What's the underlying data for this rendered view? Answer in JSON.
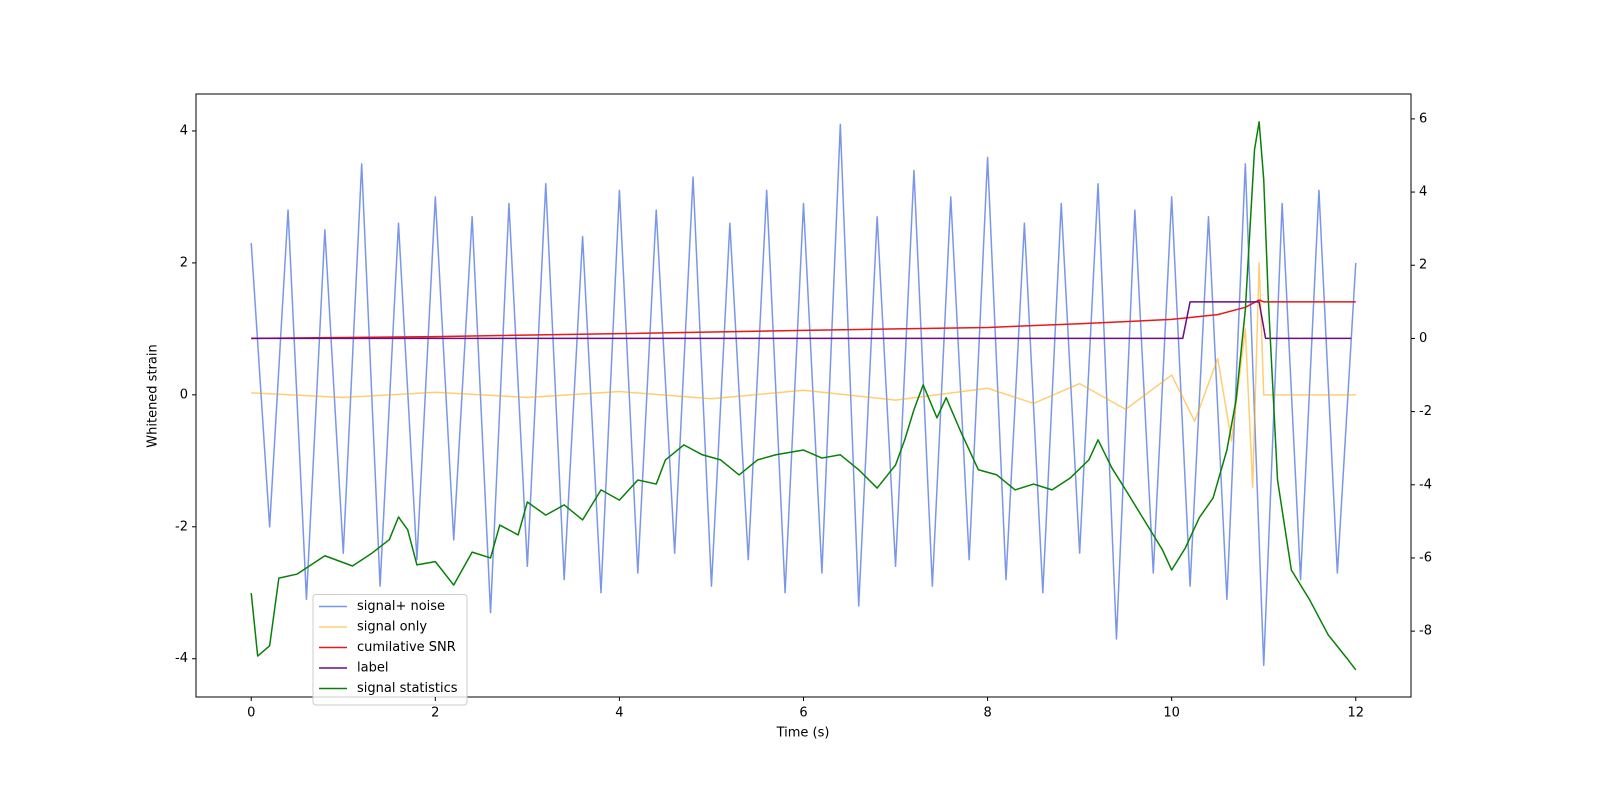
{
  "chart_data": {
    "type": "line",
    "xlabel": "Time (s)",
    "ylabel": "Whitened strain",
    "xlim": [
      -0.6,
      12.6
    ],
    "xticks": [
      0,
      2,
      4,
      6,
      8,
      10,
      12
    ],
    "ylim": [
      -4.58,
      4.56
    ],
    "yticks": [
      -4,
      -2,
      0,
      2,
      4
    ],
    "y2lim": [
      -9.8,
      6.68
    ],
    "y2ticks": [
      -8,
      -6,
      -4,
      -2,
      0,
      2,
      4,
      6
    ],
    "grid": false,
    "legend": "lower left",
    "series": [
      {
        "name": "signal+ noise",
        "color": "#4169e1",
        "opacity": 0.7,
        "axis": "y",
        "x": [
          0,
          0.2,
          0.4,
          0.6,
          0.8,
          1,
          1.2,
          1.4,
          1.6,
          1.8,
          2,
          2.2,
          2.4,
          2.6,
          2.8,
          3,
          3.2,
          3.4,
          3.6,
          3.8,
          4,
          4.2,
          4.4,
          4.6,
          4.8,
          5,
          5.2,
          5.4,
          5.6,
          5.8,
          6,
          6.2,
          6.4,
          6.6,
          6.8,
          7,
          7.2,
          7.4,
          7.6,
          7.8,
          8,
          8.2,
          8.4,
          8.6,
          8.8,
          9,
          9.2,
          9.4,
          9.6,
          9.8,
          10,
          10.2,
          10.4,
          10.6,
          10.8,
          11,
          11.2,
          11.4,
          11.6,
          11.8,
          12
        ],
        "values": [
          2.3,
          -2.0,
          2.8,
          -3.1,
          2.5,
          -2.4,
          3.5,
          -2.9,
          2.6,
          -2.5,
          3.0,
          -2.2,
          2.7,
          -3.3,
          2.9,
          -2.6,
          3.2,
          -2.8,
          2.4,
          -3.0,
          3.1,
          -2.7,
          2.8,
          -2.4,
          3.3,
          -2.9,
          2.6,
          -2.5,
          3.1,
          -3.0,
          2.9,
          -2.7,
          4.1,
          -3.2,
          2.7,
          -2.6,
          3.4,
          -2.9,
          3.0,
          -2.5,
          3.6,
          -2.8,
          2.6,
          -3.0,
          2.9,
          -2.4,
          3.2,
          -3.7,
          2.8,
          -2.7,
          3.0,
          -2.9,
          2.7,
          -3.1,
          3.5,
          -4.1,
          2.9,
          -2.8,
          3.1,
          -2.7,
          2.0
        ]
      },
      {
        "name": "signal only",
        "color": "#ffa500",
        "opacity": 0.55,
        "axis": "y",
        "x": [
          0,
          1,
          2,
          3,
          4,
          5,
          6,
          7,
          8,
          8.5,
          9,
          9.5,
          10,
          10.25,
          10.5,
          10.65,
          10.8,
          10.88,
          10.95,
          11,
          12
        ],
        "values": [
          0.03,
          -0.04,
          0.04,
          -0.04,
          0.05,
          -0.06,
          0.07,
          -0.08,
          0.1,
          -0.13,
          0.17,
          -0.22,
          0.3,
          -0.4,
          0.55,
          -0.7,
          1.0,
          -1.4,
          2.0,
          0,
          0
        ]
      },
      {
        "name": "cumilative SNR",
        "color": "#e8191b",
        "opacity": 1,
        "axis": "y2",
        "x": [
          0,
          2,
          4,
          6,
          8,
          9,
          10,
          10.5,
          10.8,
          10.95,
          11,
          12
        ],
        "values": [
          0,
          0.05,
          0.13,
          0.22,
          0.3,
          0.4,
          0.52,
          0.65,
          0.85,
          1.05,
          1.0,
          1.0
        ]
      },
      {
        "name": "label",
        "color": "#6a0d83",
        "opacity": 1,
        "axis": "y2",
        "x": [
          0,
          10.12,
          10.2,
          10.95,
          11.02,
          11.95
        ],
        "values": [
          0,
          0,
          1,
          1,
          0,
          0
        ]
      },
      {
        "name": "signal statistics",
        "color": "#088008",
        "opacity": 1,
        "axis": "y2",
        "x": [
          0,
          0.07,
          0.2,
          0.3,
          0.5,
          0.8,
          1.1,
          1.3,
          1.5,
          1.6,
          1.7,
          1.8,
          2.0,
          2.2,
          2.4,
          2.6,
          2.7,
          2.9,
          3.0,
          3.2,
          3.4,
          3.6,
          3.8,
          4.0,
          4.2,
          4.4,
          4.5,
          4.7,
          4.9,
          5.1,
          5.3,
          5.5,
          5.7,
          6.0,
          6.2,
          6.4,
          6.6,
          6.8,
          7.0,
          7.1,
          7.2,
          7.3,
          7.45,
          7.55,
          7.7,
          7.9,
          8.1,
          8.3,
          8.5,
          8.7,
          8.9,
          9.1,
          9.2,
          9.35,
          9.5,
          9.7,
          9.9,
          10.0,
          10.15,
          10.3,
          10.45,
          10.6,
          10.7,
          10.8,
          10.9,
          10.95,
          11.0,
          11.05,
          11.15,
          11.3,
          11.5,
          11.7,
          11.9,
          12.0
        ],
        "values": [
          -6.96,
          -8.68,
          -8.4,
          -6.55,
          -6.44,
          -5.94,
          -6.22,
          -5.89,
          -5.5,
          -4.88,
          -5.23,
          -6.19,
          -6.1,
          -6.74,
          -5.84,
          -6.0,
          -5.1,
          -5.37,
          -4.47,
          -4.83,
          -4.55,
          -4.96,
          -4.14,
          -4.42,
          -3.87,
          -3.98,
          -3.32,
          -2.91,
          -3.18,
          -3.32,
          -3.73,
          -3.32,
          -3.18,
          -3.05,
          -3.27,
          -3.18,
          -3.59,
          -4.09,
          -3.46,
          -2.77,
          -1.95,
          -1.27,
          -2.17,
          -1.62,
          -2.5,
          -3.59,
          -3.73,
          -4.14,
          -3.98,
          -4.14,
          -3.81,
          -3.32,
          -2.77,
          -3.54,
          -4.14,
          -4.96,
          -5.78,
          -6.33,
          -5.72,
          -4.9,
          -4.36,
          -3.05,
          -1.68,
          0.78,
          5.16,
          5.92,
          4.34,
          1.05,
          -3.87,
          -6.33,
          -7.15,
          -8.1,
          -8.73,
          -9.06
        ]
      }
    ]
  }
}
